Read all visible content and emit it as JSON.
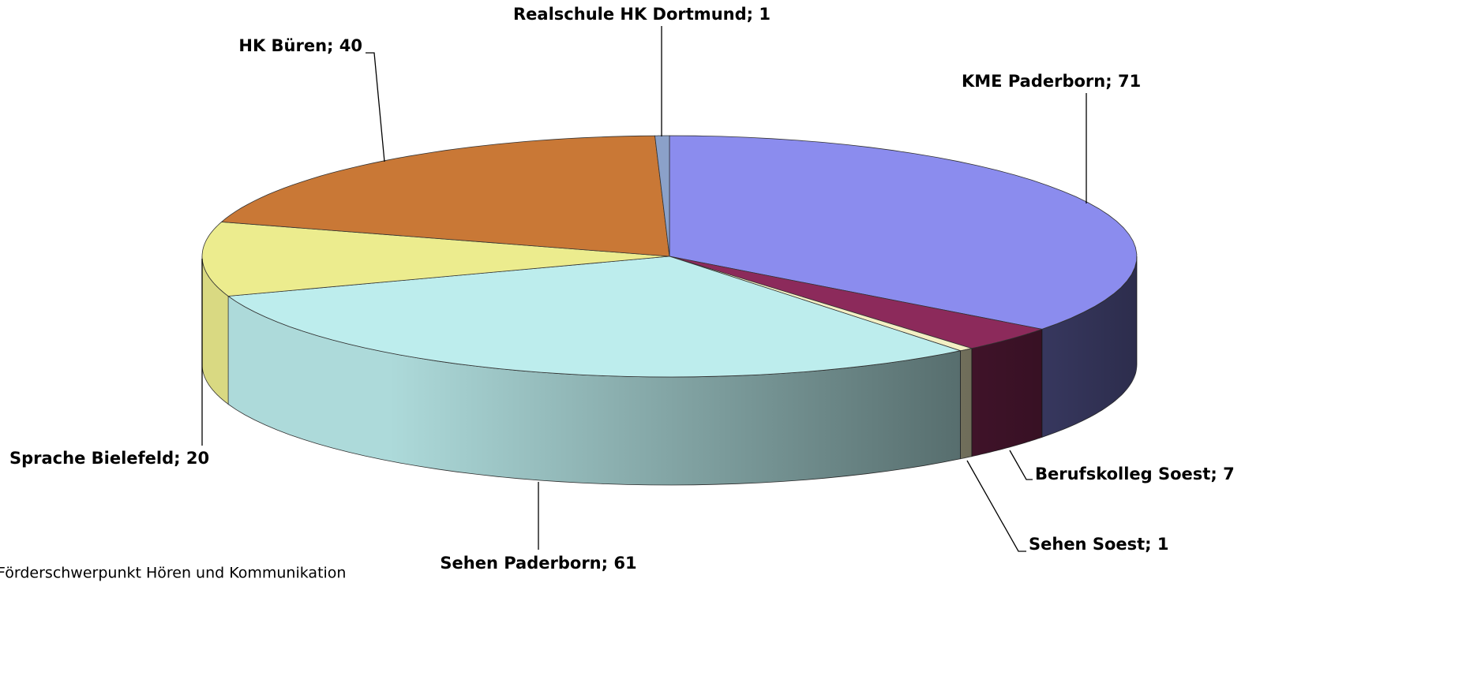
{
  "chart_data": {
    "type": "pie3d",
    "categories": [
      "KME Paderborn",
      "Berufskolleg Soest",
      "Sehen Soest",
      "Sehen Paderborn",
      "Sprache Bielefeld",
      "HK Büren",
      "Realschule HK Dortmund"
    ],
    "values": [
      71,
      7,
      1,
      61,
      20,
      40,
      1
    ],
    "colors": [
      "#8b8cee",
      "#8c2a5b",
      "#f3efc4",
      "#bdeded",
      "#ecec8e",
      "#c97836",
      "#8ba1c9"
    ],
    "label_separator": "; "
  },
  "footnote": "Förderschwerpunkt Hören und Kommunikation"
}
